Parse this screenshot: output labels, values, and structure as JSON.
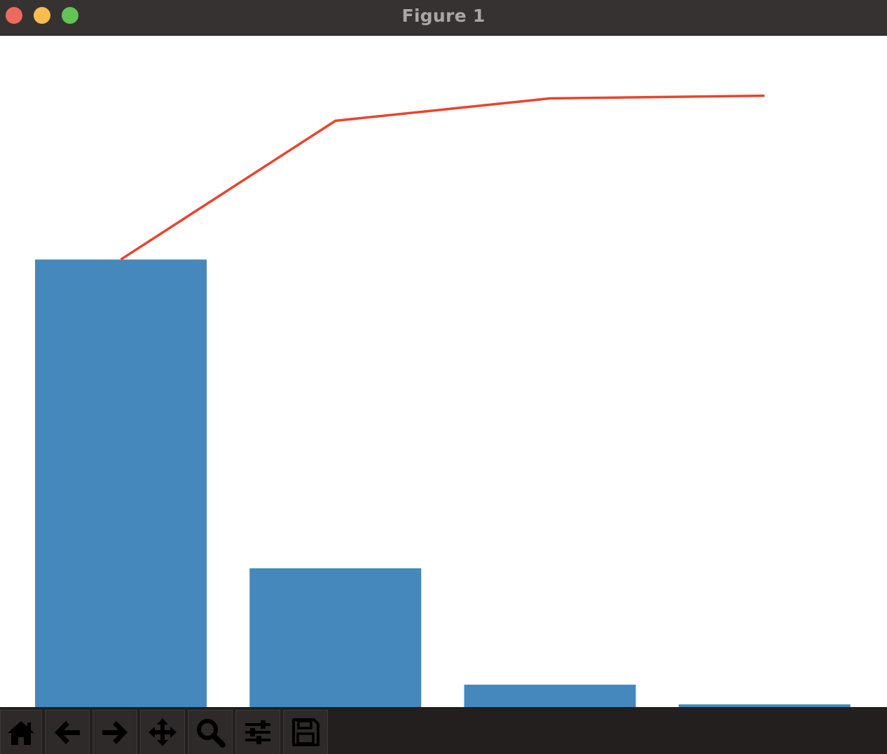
{
  "window": {
    "title": "Figure 1",
    "controls": [
      "close",
      "minimize",
      "maximize"
    ]
  },
  "toolbar": {
    "tools": [
      {
        "name": "home",
        "icon": "home-icon"
      },
      {
        "name": "back",
        "icon": "arrow-left-icon"
      },
      {
        "name": "forward",
        "icon": "arrow-right-icon"
      },
      {
        "name": "pan",
        "icon": "move-icon"
      },
      {
        "name": "zoom",
        "icon": "magnifier-icon"
      },
      {
        "name": "configure-subplots",
        "icon": "sliders-icon"
      },
      {
        "name": "save",
        "icon": "floppy-disk-icon"
      }
    ]
  },
  "colors": {
    "bar": "#4589bc",
    "line": "#e8452c",
    "titlebar": "#363232",
    "toolbar": "#231f1f"
  },
  "chart_data": {
    "type": "bar",
    "categories": [
      "",
      "",
      "",
      ""
    ],
    "values": [
      100,
      31,
      5,
      0.6
    ],
    "series": [
      {
        "type": "bar",
        "values": [
          100,
          31,
          5,
          0.6
        ]
      },
      {
        "type": "line",
        "values": [
          100,
          131,
          136,
          136.6
        ]
      }
    ],
    "title": "",
    "xlabel": "",
    "ylabel": "",
    "ylim": [
      0,
      150
    ],
    "grid": false,
    "axes_visible": false
  }
}
